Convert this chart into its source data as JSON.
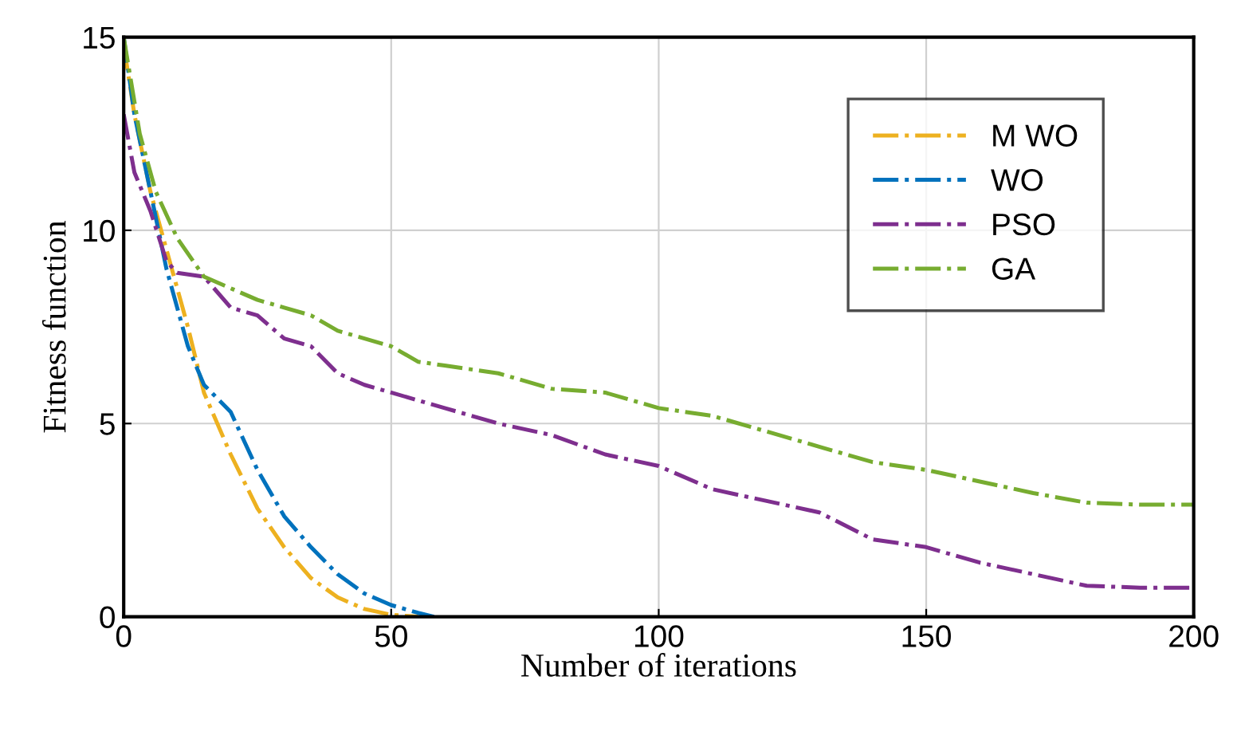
{
  "chart_data": {
    "type": "line",
    "xlabel": "Number of iterations",
    "ylabel": "Fitness function",
    "xlim": [
      0,
      200
    ],
    "ylim": [
      0,
      15
    ],
    "xticks": [
      0,
      50,
      100,
      150,
      200
    ],
    "yticks": [
      0,
      5,
      10,
      15
    ],
    "grid": true,
    "legend": "top right",
    "line_style": "dashdot",
    "marker": "none",
    "series": [
      {
        "name": "M WO",
        "color": "#edb120",
        "x": [
          0,
          2,
          5,
          8,
          12,
          15,
          20,
          25,
          30,
          35,
          40,
          45,
          50,
          55
        ],
        "values": [
          14.8,
          13,
          11,
          9.5,
          7.5,
          5.8,
          4.2,
          2.8,
          1.8,
          1.0,
          0.5,
          0.2,
          0.05,
          0
        ]
      },
      {
        "name": "WO",
        "color": "#0072bd",
        "x": [
          0,
          2,
          5,
          8,
          12,
          15,
          20,
          25,
          30,
          35,
          40,
          45,
          50,
          55,
          58
        ],
        "values": [
          15,
          13,
          11,
          9,
          7,
          6.0,
          5.3,
          3.8,
          2.6,
          1.8,
          1.1,
          0.6,
          0.3,
          0.1,
          0
        ]
      },
      {
        "name": "PSO",
        "color": "#7e2f8e",
        "x": [
          0,
          2,
          5,
          8,
          10,
          15,
          20,
          25,
          30,
          35,
          40,
          45,
          50,
          60,
          70,
          80,
          90,
          100,
          110,
          120,
          130,
          140,
          150,
          160,
          170,
          180,
          190,
          200
        ],
        "values": [
          13,
          11.5,
          10.5,
          9.2,
          8.9,
          8.8,
          8.0,
          7.8,
          7.2,
          7.0,
          6.3,
          6.0,
          5.8,
          5.4,
          5.0,
          4.7,
          4.2,
          3.9,
          3.3,
          3.0,
          2.7,
          2.0,
          1.8,
          1.4,
          1.1,
          0.8,
          0.75,
          0.75
        ]
      },
      {
        "name": "GA",
        "color": "#77ac30",
        "x": [
          0,
          3,
          6,
          10,
          15,
          20,
          25,
          30,
          35,
          40,
          45,
          50,
          55,
          60,
          70,
          80,
          90,
          100,
          110,
          120,
          130,
          140,
          150,
          160,
          170,
          180,
          190,
          200
        ],
        "values": [
          15,
          12.5,
          11,
          9.8,
          8.8,
          8.5,
          8.2,
          8.0,
          7.8,
          7.4,
          7.2,
          7.0,
          6.6,
          6.5,
          6.3,
          5.9,
          5.8,
          5.4,
          5.2,
          4.8,
          4.4,
          4.0,
          3.8,
          3.5,
          3.2,
          2.95,
          2.9,
          2.9
        ]
      }
    ]
  }
}
